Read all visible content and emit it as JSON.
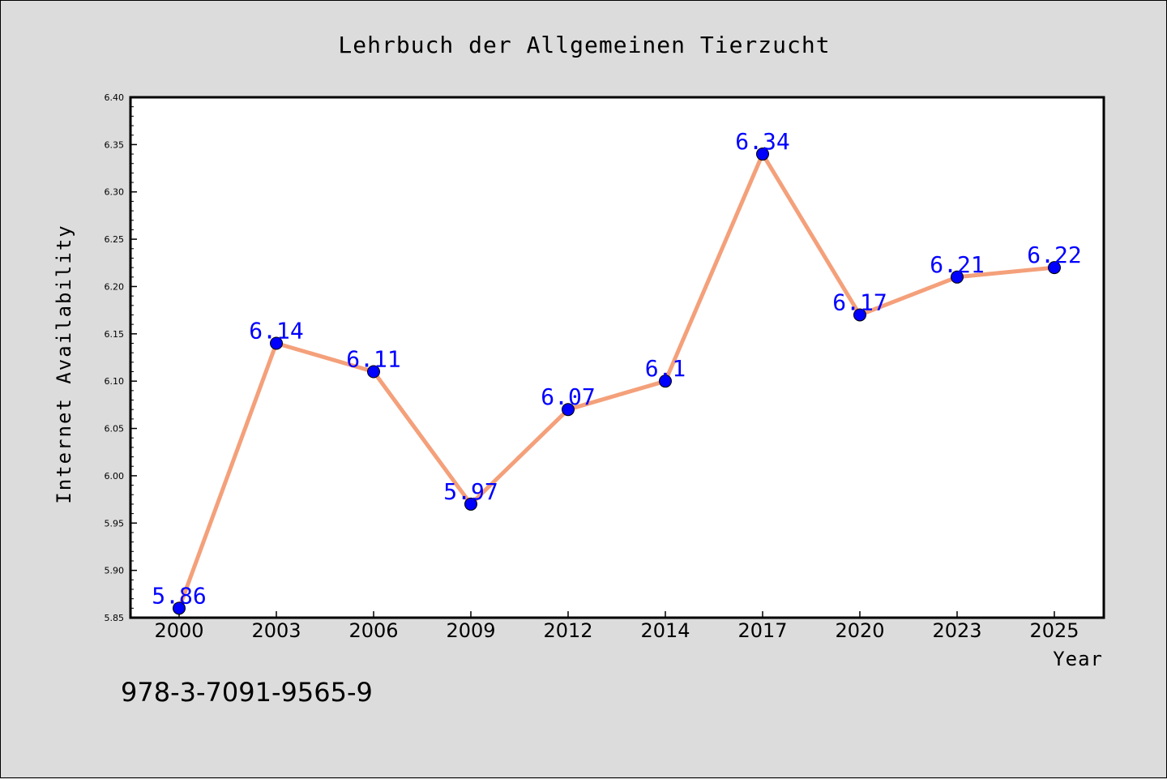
{
  "chart_data": {
    "type": "line",
    "title": "Lehrbuch der Allgemeinen Tierzucht",
    "xlabel": "Year",
    "ylabel": "Internet Availability",
    "categories": [
      "2000",
      "2003",
      "2006",
      "2009",
      "2012",
      "2014",
      "2017",
      "2020",
      "2023",
      "2025"
    ],
    "series": [
      {
        "values": [
          5.86,
          6.14,
          6.11,
          5.97,
          6.07,
          6.1,
          6.34,
          6.17,
          6.21,
          6.22
        ],
        "labels": [
          "5.86",
          "6.14",
          "6.11",
          "5.97",
          "6.07",
          "6.1",
          "6.34",
          "6.17",
          "6.21",
          "6.22"
        ]
      }
    ],
    "ylim": [
      5.85,
      6.4
    ],
    "yticks": [
      "5.85",
      "5.90",
      "5.95",
      "6.00",
      "6.05",
      "6.10",
      "6.15",
      "6.20",
      "6.25",
      "6.30",
      "6.35",
      "6.40"
    ],
    "grid": false,
    "legend": "none",
    "colors": {
      "line": "#f4a07a",
      "marker": "#0000ff",
      "data_label": "#0000ff",
      "plot_background": "#ffffff",
      "page_background": "#dcdcdc"
    }
  },
  "footer_text": "978-3-7091-9565-9"
}
